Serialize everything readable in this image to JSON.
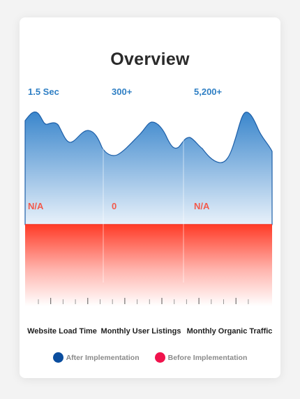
{
  "title": "Overview",
  "chart_data": {
    "type": "area",
    "title": "Overview",
    "categories": [
      "Website Load Time",
      "Monthly User Listings",
      "Monthly Organic Traffic"
    ],
    "series": [
      {
        "name": "After Implementation",
        "labels": [
          "1.5 Sec",
          "300+",
          "5,200+"
        ],
        "color": "#2f7fc4"
      },
      {
        "name": "Before Implementation",
        "labels": [
          "N/A",
          "0",
          "N/A"
        ],
        "color": "#ff3d2e"
      }
    ],
    "legend_position": "bottom",
    "grid": false
  },
  "colors": {
    "after_dot": "#0a4d9e",
    "before_dot": "#f0134c"
  }
}
